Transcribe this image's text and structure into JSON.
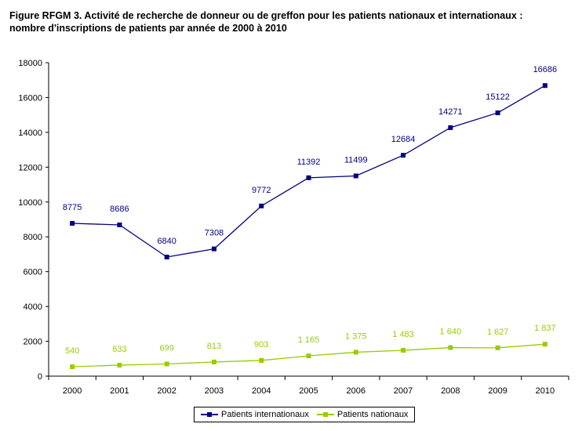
{
  "title": {
    "line1": "Figure RFGM 3. Activité de recherche de donneur ou de greffon pour les patients nationaux et internationaux :",
    "line2": "nombre d'inscriptions de patients par année de 2000 à 2010"
  },
  "chart_data": {
    "type": "line",
    "title": "Figure RFGM 3. Activité de recherche de donneur ou de greffon pour les patients nationaux et internationaux : nombre d'inscriptions de patients par année de 2000 à 2010",
    "xlabel": "",
    "ylabel": "",
    "categories": [
      "2000",
      "2001",
      "2002",
      "2003",
      "2004",
      "2005",
      "2006",
      "2007",
      "2008",
      "2009",
      "2010"
    ],
    "ylim": [
      0,
      18000
    ],
    "yticks": [
      0,
      2000,
      4000,
      6000,
      8000,
      10000,
      12000,
      14000,
      16000,
      18000
    ],
    "grid": false,
    "legend_position": "bottom",
    "series": [
      {
        "name": "Patients internationaux",
        "color": "#000080",
        "values": [
          8775,
          8686,
          6840,
          7308,
          9772,
          11392,
          11499,
          12684,
          14271,
          15122,
          16686
        ],
        "labels": [
          "8775",
          "8686",
          "6840",
          "7308",
          "9772",
          "11392",
          "11499",
          "12684",
          "14271",
          "15122",
          "16686"
        ]
      },
      {
        "name": "Patients nationaux",
        "color": "#99CC00",
        "values": [
          540,
          633,
          699,
          813,
          903,
          1165,
          1375,
          1483,
          1640,
          1627,
          1837
        ],
        "labels": [
          "540",
          "633",
          "699",
          "813",
          "903",
          "1 165",
          "1 375",
          "1 483",
          "1 640",
          "1 627",
          "1 837"
        ]
      }
    ]
  }
}
